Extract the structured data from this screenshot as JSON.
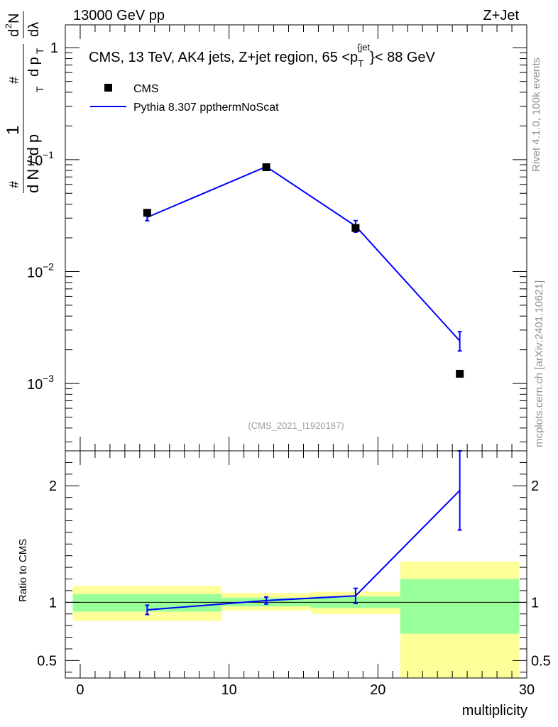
{
  "header": {
    "energy_label": "13000 GeV pp",
    "process_label": "Z+Jet"
  },
  "side_labels": {
    "rivet": "Rivet 4.1.0,  100k events",
    "mcplots": "mcplots.cern.ch [arXiv:2401.10621]"
  },
  "chart_data": [
    {
      "type": "scatter",
      "panel": "main",
      "title": "CMS, 13 TeV, AK4 jets, Z+jet region, 65 <p_T^{jet}< 88 GeV",
      "title_parts": {
        "prefix": "CMS, 13 TeV, AK4 jets, Z+jet region, 65 <p",
        "sub": "T",
        "sup": "{jet",
        "suffix": "}< 88 GeV"
      },
      "analysis_label": "(CMS_2021_I1920187)",
      "yscale": "log",
      "ylim": [
        0.00025,
        1.6
      ],
      "xlim": [
        -1,
        30
      ],
      "ylabel_parts": [
        "#",
        "1",
        "d N / d p",
        "T",
        "#",
        "d p",
        "T",
        "d",
        "2",
        "N",
        "dλ"
      ],
      "y_ticks": [
        {
          "value": 1,
          "label": "1",
          "base": "",
          "exp": ""
        },
        {
          "value": 0.1,
          "label": "",
          "base": "10",
          "exp": "−1"
        },
        {
          "value": 0.01,
          "label": "",
          "base": "10",
          "exp": "−2"
        },
        {
          "value": 0.001,
          "label": "",
          "base": "10",
          "exp": "−3"
        }
      ],
      "legend": [
        {
          "name": "CMS",
          "marker": "square",
          "color": "#000000"
        },
        {
          "name": "Pythia 8.307 ppthermNoScat",
          "marker": "line",
          "color": "#0000ff"
        }
      ],
      "series": [
        {
          "name": "CMS",
          "color": "#000000",
          "x": [
            4.5,
            12.5,
            18.5,
            25.5
          ],
          "y": [
            0.0335,
            0.0855,
            0.0245,
            0.00122
          ]
        },
        {
          "name": "Pythia 8.307 ppthermNoScat",
          "color": "#0000ff",
          "x": [
            4.5,
            12.5,
            18.5,
            25.5
          ],
          "y": [
            0.0305,
            0.0865,
            0.0255,
            0.0024
          ],
          "yerr_low": [
            0.0285,
            0.083,
            0.0225,
            0.00195
          ],
          "yerr_high": [
            0.0325,
            0.0895,
            0.0285,
            0.0029
          ]
        }
      ]
    },
    {
      "type": "line",
      "panel": "ratio",
      "ylabel": "Ratio to CMS",
      "xlabel": "multiplicity",
      "ylim": [
        0.35,
        2.3
      ],
      "xlim": [
        -1,
        30
      ],
      "x_ticks": [
        0,
        10,
        20,
        30
      ],
      "y_ticks": [
        {
          "value": 0.5,
          "label": "0.5"
        },
        {
          "value": 1,
          "label": "1"
        },
        {
          "value": 2,
          "label": "2"
        }
      ],
      "reference_line": 1,
      "bands": [
        {
          "x_low": -0.5,
          "x_high": 9.5,
          "green_low": 0.92,
          "green_high": 1.07,
          "yellow_low": 0.84,
          "yellow_high": 1.14
        },
        {
          "x_low": 9.5,
          "x_high": 15.5,
          "green_low": 0.965,
          "green_high": 1.04,
          "yellow_low": 0.93,
          "yellow_high": 1.08
        },
        {
          "x_low": 15.5,
          "x_high": 21.5,
          "green_low": 0.95,
          "green_high": 1.05,
          "yellow_low": 0.9,
          "yellow_high": 1.09
        },
        {
          "x_low": 21.5,
          "x_high": 29.5,
          "green_low": 0.73,
          "green_high": 1.2,
          "yellow_low": 0.35,
          "yellow_high": 1.35
        }
      ],
      "series": [
        {
          "name": "Pythia 8.307 ppthermNoScat",
          "color": "#0000ff",
          "x": [
            4.5,
            12.5,
            18.5,
            25.5
          ],
          "y": [
            0.935,
            1.015,
            1.055,
            1.96
          ],
          "yerr_low": [
            0.895,
            0.985,
            0.99,
            1.62
          ],
          "yerr_high": [
            0.975,
            1.045,
            1.12,
            2.3
          ]
        }
      ]
    }
  ]
}
